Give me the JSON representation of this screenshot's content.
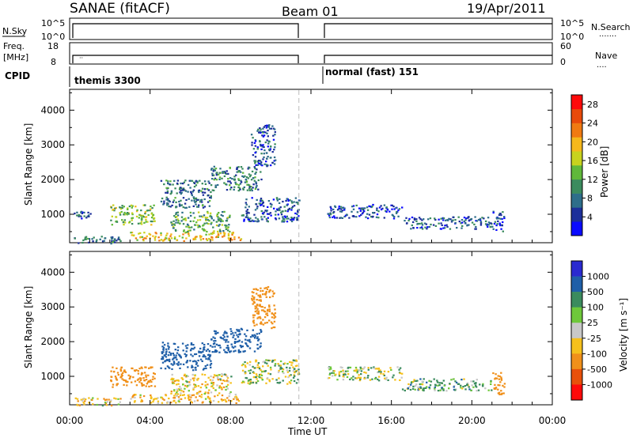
{
  "header": {
    "station": "SANAE (fitACF)",
    "beam": "Beam 01",
    "date": "19/Apr/2011"
  },
  "param_panels": {
    "nsky_label": "N.Sky",
    "nsky_ticks": [
      "10^5",
      "10^0"
    ],
    "nsearch_label": "N.Search",
    "nsearch_dots": "·······",
    "freq_label": "Freq.",
    "freq_unit": "[MHz]",
    "freq_ticks": [
      "18",
      "8"
    ],
    "nave_ticks": [
      "60",
      "0"
    ],
    "nave_label": "Nave",
    "nave_dots": "····",
    "cpid_label": "CPID",
    "cpid_segments": [
      {
        "label": "themis 3300",
        "start_hour": 0.3,
        "end_hour": 11.4
      },
      {
        "label": "normal (fast) 151",
        "start_hour": 12.7,
        "end_hour": 24.0
      }
    ]
  },
  "power_colorbar": {
    "label": "Power [dB]",
    "ticks": [
      "28",
      "24",
      "20",
      "16",
      "12",
      "8",
      "4"
    ],
    "colors": [
      "#0a0aff",
      "#1c2f9a",
      "#2e6e8a",
      "#3b8b5e",
      "#60b83a",
      "#c8d21e",
      "#f5b81c",
      "#f07a12",
      "#e84a0a",
      "#ff0a0a"
    ]
  },
  "velocity_colorbar": {
    "label": "Velocity [m s⁻¹]",
    "ticks": [
      "1000",
      "500",
      "100",
      "25",
      "-25",
      "-100",
      "-500",
      "-1000"
    ],
    "colors": [
      "#2a2ad0",
      "#1f5fa8",
      "#3b8b5e",
      "#6ec83a",
      "#c8c8c8",
      "#f5c01c",
      "#f0901a",
      "#e8500a",
      "#ff0a0a"
    ]
  },
  "axis_labels": {
    "y_label": "Slant Range [km]",
    "x_label": "Time UT",
    "x_ticks": [
      "00:00",
      "04:00",
      "08:00",
      "12:00",
      "16:00",
      "20:00",
      "00:00"
    ],
    "y_ticks": [
      "1000",
      "2000",
      "3000",
      "4000"
    ]
  },
  "chart_data": {
    "type": "heatmap",
    "title": "SANAE (fitACF)",
    "xlabel": "Time UT",
    "ylabel": "Slant Range [km]",
    "xlim": [
      0,
      24
    ],
    "ylim": [
      180,
      4600
    ],
    "dashed_marker_hour": 11.4,
    "panels": [
      {
        "name": "Power [dB]",
        "clusters": [
          {
            "time_start": 0.2,
            "time_end": 2.5,
            "range_start": 180,
            "range_end": 400,
            "power_db": 8
          },
          {
            "time_start": 0.2,
            "time_end": 1.2,
            "range_start": 900,
            "range_end": 1100,
            "power_db": 5
          },
          {
            "time_start": 2.0,
            "time_end": 4.2,
            "range_start": 700,
            "range_end": 1300,
            "power_db": 14
          },
          {
            "time_start": 3.0,
            "time_end": 8.5,
            "range_start": 250,
            "range_end": 500,
            "power_db": 19
          },
          {
            "time_start": 5.0,
            "time_end": 8.0,
            "range_start": 500,
            "range_end": 1100,
            "power_db": 12
          },
          {
            "time_start": 4.5,
            "time_end": 7.0,
            "range_start": 1200,
            "range_end": 2000,
            "power_db": 8
          },
          {
            "time_start": 7.0,
            "time_end": 9.5,
            "range_start": 1700,
            "range_end": 2400,
            "power_db": 9
          },
          {
            "time_start": 8.5,
            "time_end": 11.4,
            "range_start": 800,
            "range_end": 1500,
            "power_db": 6
          },
          {
            "time_start": 9.0,
            "time_end": 10.2,
            "range_start": 2400,
            "range_end": 3600,
            "power_db": 6
          },
          {
            "time_start": 12.8,
            "time_end": 16.5,
            "range_start": 900,
            "range_end": 1300,
            "power_db": 5
          },
          {
            "time_start": 16.5,
            "time_end": 21.0,
            "range_start": 600,
            "range_end": 950,
            "power_db": 6
          },
          {
            "time_start": 21.0,
            "time_end": 21.6,
            "range_start": 500,
            "range_end": 1150,
            "power_db": 5
          }
        ]
      },
      {
        "name": "Velocity [m s-1]",
        "clusters": [
          {
            "time_start": 0.2,
            "time_end": 2.5,
            "range_start": 180,
            "range_end": 400,
            "velocity": -50
          },
          {
            "time_start": 2.0,
            "time_end": 4.2,
            "range_start": 700,
            "range_end": 1300,
            "velocity": -200
          },
          {
            "time_start": 3.0,
            "time_end": 8.5,
            "range_start": 250,
            "range_end": 500,
            "velocity": -80
          },
          {
            "time_start": 5.0,
            "time_end": 8.0,
            "range_start": 500,
            "range_end": 1100,
            "velocity": -60
          },
          {
            "time_start": 4.5,
            "time_end": 7.0,
            "range_start": 1200,
            "range_end": 2000,
            "velocity": 300
          },
          {
            "time_start": 7.0,
            "time_end": 9.5,
            "range_start": 1700,
            "range_end": 2400,
            "velocity": 200
          },
          {
            "time_start": 8.5,
            "time_end": 11.4,
            "range_start": 800,
            "range_end": 1500,
            "velocity": 0
          },
          {
            "time_start": 9.0,
            "time_end": 10.2,
            "range_start": 2400,
            "range_end": 3600,
            "velocity": -300
          },
          {
            "time_start": 12.8,
            "time_end": 16.5,
            "range_start": 900,
            "range_end": 1300,
            "velocity": 0
          },
          {
            "time_start": 16.5,
            "time_end": 21.0,
            "range_start": 600,
            "range_end": 950,
            "velocity": 40
          },
          {
            "time_start": 21.0,
            "time_end": 21.6,
            "range_start": 500,
            "range_end": 1150,
            "velocity": -200
          }
        ]
      }
    ]
  }
}
